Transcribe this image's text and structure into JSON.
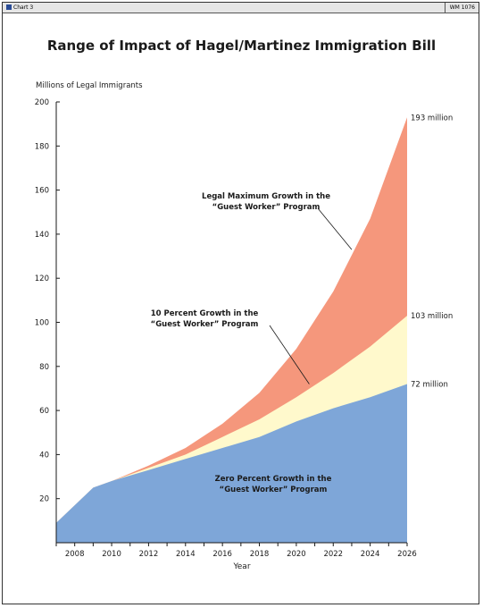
{
  "header": {
    "left_label": "Chart 3",
    "right_label": "WM 1076",
    "logo_icon": "heritage-logo-icon"
  },
  "chart_data": {
    "type": "area",
    "title": "Range of Impact of Hagel/Martinez Immigration Bill",
    "ylabel": "Millions of Legal Immigrants",
    "xlabel": "Year",
    "xlim": [
      2007,
      2026
    ],
    "ylim": [
      0,
      200
    ],
    "x_ticks": [
      2008,
      2010,
      2012,
      2014,
      2016,
      2018,
      2020,
      2022,
      2024,
      2026
    ],
    "y_ticks": [
      20,
      40,
      60,
      80,
      100,
      120,
      140,
      160,
      180,
      200
    ],
    "x": [
      2007,
      2009,
      2010,
      2012,
      2014,
      2016,
      2018,
      2020,
      2022,
      2024,
      2026
    ],
    "series": [
      {
        "name": "Zero Percent Growth in the “Guest Worker” Program",
        "color": "#7ea6d8",
        "values": [
          9,
          25,
          28,
          33,
          38,
          43,
          48,
          55,
          61,
          66,
          72
        ]
      },
      {
        "name": "10 Percent Growth in the “Guest Worker” Program",
        "color": "#fff9cc",
        "values": [
          9,
          25,
          28,
          34,
          40,
          48,
          56,
          66,
          77,
          89,
          103
        ]
      },
      {
        "name": "Legal Maximum Growth in the “Guest Worker” Program",
        "color": "#f5977c",
        "values": [
          9,
          25,
          28,
          35,
          43,
          54,
          68,
          88,
          114,
          147,
          193
        ]
      }
    ],
    "end_labels": [
      "193 million",
      "103 million",
      "72 million"
    ],
    "area_labels": [
      {
        "line1": "Legal Maximum Growth in the",
        "line2": "“Guest Worker” Program"
      },
      {
        "line1": "10 Percent Growth in the",
        "line2": "“Guest Worker” Program"
      },
      {
        "line1": "Zero Percent Growth in the",
        "line2": "“Guest Worker” Program"
      }
    ],
    "grid": false,
    "legend": "none"
  }
}
